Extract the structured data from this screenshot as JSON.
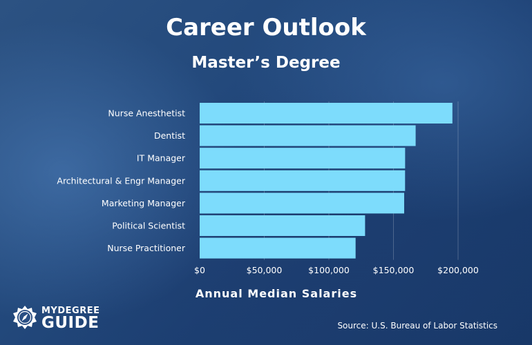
{
  "header": {
    "title": "Career Outlook",
    "subtitle": "Master’s Degree"
  },
  "chart_data": {
    "type": "bar",
    "orientation": "horizontal",
    "categories": [
      "Nurse Anesthetist",
      "Dentist",
      "IT Manager",
      "Architectural & Engr Manager",
      "Marketing Manager",
      "Political Scientist",
      "Nurse Practitioner"
    ],
    "values": [
      195610,
      167160,
      159010,
      158970,
      158280,
      128020,
      120680
    ],
    "xlabel": "Annual Median Salaries",
    "ylabel": "",
    "xlim": [
      0,
      200000
    ],
    "xticks": [
      0,
      50000,
      100000,
      150000,
      200000
    ],
    "xtick_labels": [
      "$0",
      "$50,000",
      "$100,000",
      "$150,000",
      "$200,000"
    ],
    "grid": "vertical",
    "bar_color": "#7ddcfc"
  },
  "logo": {
    "name": "mydegree-guide-logo",
    "top_text": "MYDEGREE",
    "bottom_text": "GUIDE"
  },
  "footer": {
    "source": "Source: U.S. Bureau of Labor Statistics"
  }
}
